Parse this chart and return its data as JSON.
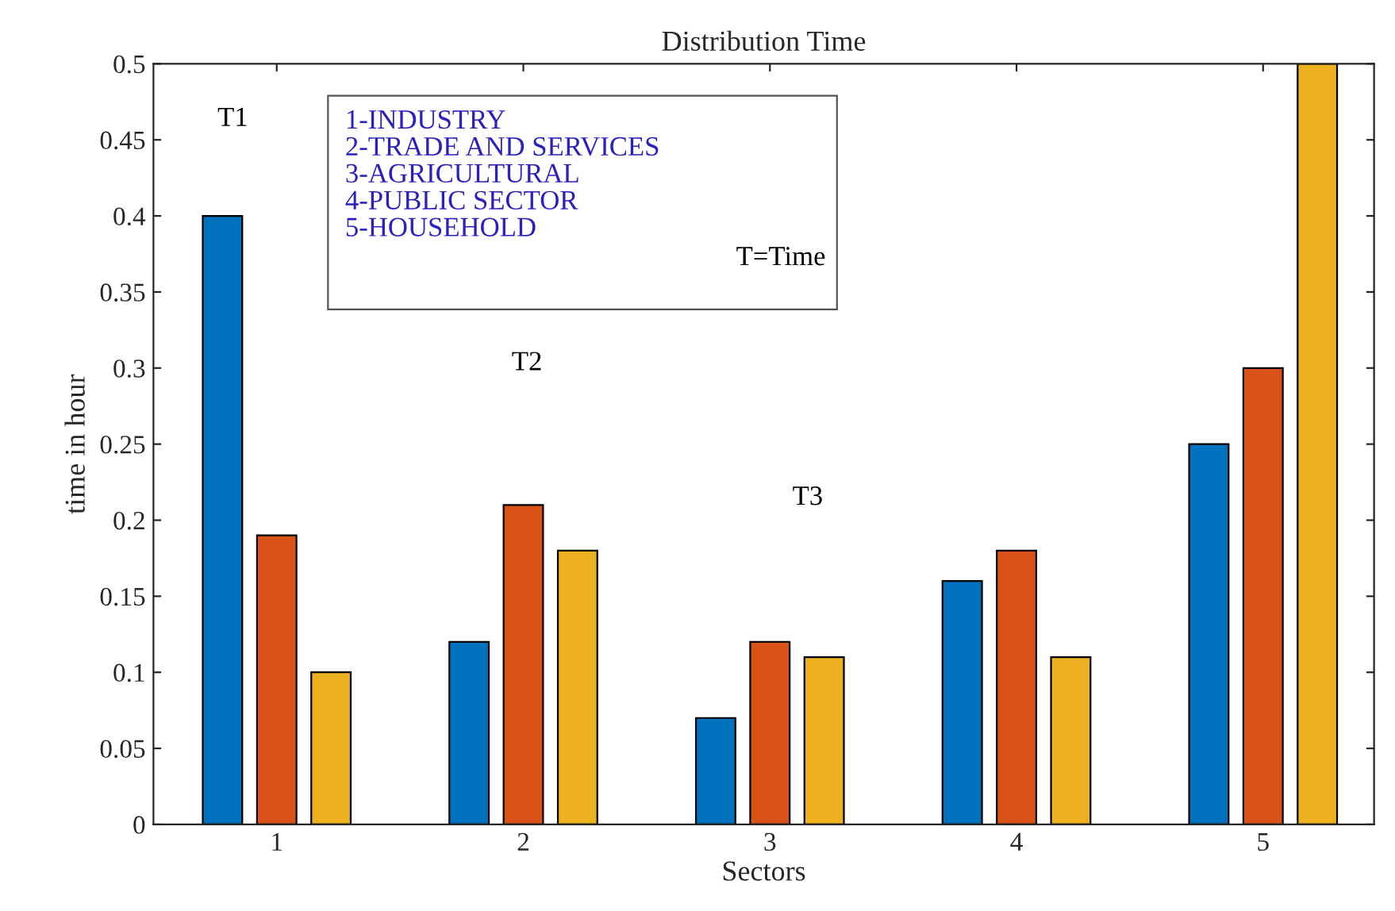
{
  "chart_data": {
    "type": "bar",
    "title": "Distribution Time",
    "xlabel": "Sectors",
    "ylabel": "time in hour",
    "categories": [
      "1",
      "2",
      "3",
      "4",
      "5"
    ],
    "series": [
      {
        "color": "#0072bd",
        "values": [
          0.4,
          0.12,
          0.07,
          0.16,
          0.25
        ]
      },
      {
        "color": "#d95319",
        "values": [
          0.19,
          0.21,
          0.12,
          0.18,
          0.3
        ]
      },
      {
        "color": "#edb120",
        "values": [
          0.1,
          0.18,
          0.11,
          0.11,
          0.5
        ]
      }
    ],
    "ylim": [
      0,
      0.5
    ],
    "yticks": [
      0,
      0.05,
      0.1,
      0.15,
      0.2,
      0.25,
      0.3,
      0.35,
      0.4,
      0.45,
      0.5
    ],
    "grid": false,
    "annotations": [
      "T1",
      "T2",
      "T3",
      "1-INDUSTRY\n2-TRADE AND SERVICES\n3-AGRICULTURAL\n4-PUBLIC SECTOR\n5-HOUSEHOLD",
      "T=Time"
    ]
  }
}
